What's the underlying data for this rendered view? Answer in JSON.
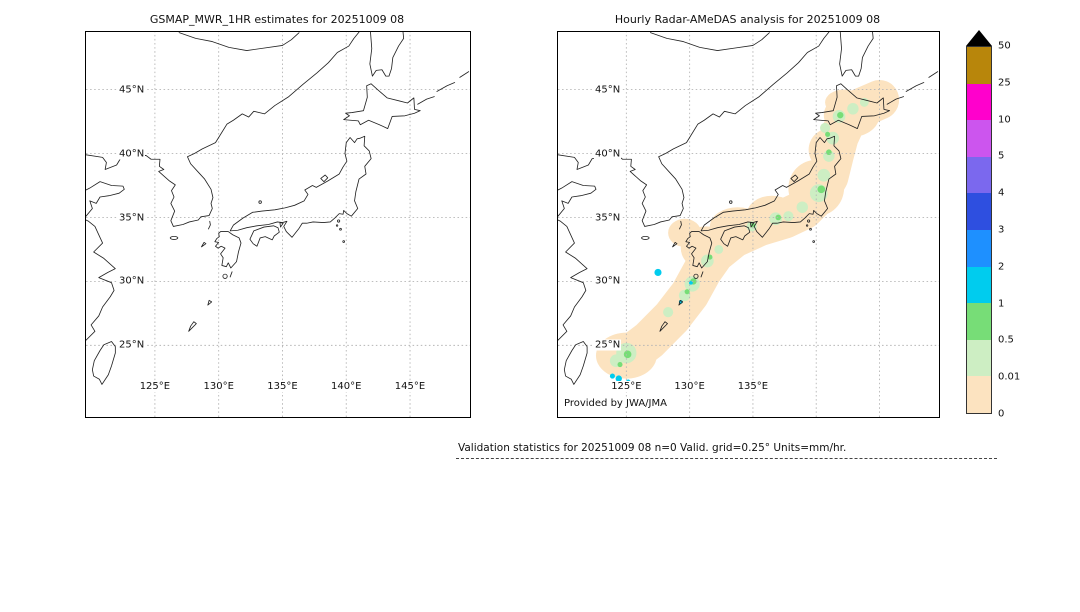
{
  "left_panel": {
    "title": "GSMAP_MWR_1HR estimates for 20251009 08",
    "lat_labels": [
      "45°N",
      "40°N",
      "35°N",
      "30°N",
      "25°N"
    ],
    "lon_labels": [
      "125°E",
      "130°E",
      "135°E",
      "140°E",
      "145°E"
    ]
  },
  "right_panel": {
    "title": "Hourly Radar-AMeDAS analysis for 20251009 08",
    "lat_labels": [
      "45°N",
      "40°N",
      "35°N",
      "30°N",
      "25°N"
    ],
    "lon_labels": [
      "125°E",
      "130°E",
      "135°E"
    ],
    "credit": "Provided by JWA/JMA"
  },
  "colorbar": {
    "tick_labels": [
      "50",
      "25",
      "10",
      "5",
      "4",
      "3",
      "2",
      "1",
      "0.5",
      "0.01",
      "0"
    ],
    "colors": [
      "#b8860b",
      "#ff00cc",
      "#cc55ee",
      "#7b68ee",
      "#2e4fe0",
      "#1e90ff",
      "#00ccee",
      "#77dd77",
      "#cdeec3",
      "#fce3c0"
    ],
    "overflow_color": "#000000"
  },
  "map_overlay_colors": {
    "trace_peach": "#fce3c0",
    "pale_green": "#cdeec3",
    "green": "#77dd77",
    "cyan": "#00ccee"
  },
  "footer": {
    "validation_text": "Validation statistics for 20251009 08  n=0 Valid. grid=0.25° Units=mm/hr."
  }
}
